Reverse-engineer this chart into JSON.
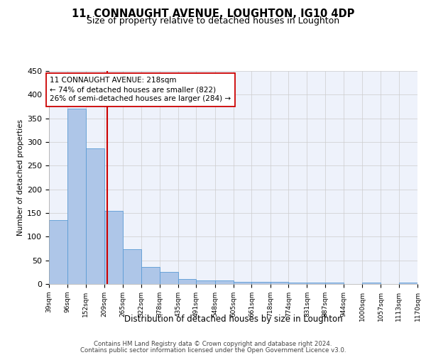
{
  "title1": "11, CONNAUGHT AVENUE, LOUGHTON, IG10 4DP",
  "title2": "Size of property relative to detached houses in Loughton",
  "xlabel": "Distribution of detached houses by size in Loughton",
  "ylabel": "Number of detached properties",
  "bin_edges": [
    39,
    96,
    152,
    209,
    265,
    322,
    378,
    435,
    491,
    548,
    605,
    661,
    718,
    774,
    831,
    887,
    944,
    1000,
    1057,
    1113,
    1170
  ],
  "bar_heights": [
    135,
    370,
    287,
    155,
    73,
    36,
    25,
    10,
    8,
    7,
    4,
    4,
    4,
    3,
    3,
    3,
    0,
    3,
    0,
    3
  ],
  "bar_color": "#aec6e8",
  "bar_edge_color": "#5b9bd5",
  "property_size": 218,
  "vline_color": "#cc0000",
  "annotation_line1": "11 CONNAUGHT AVENUE: 218sqm",
  "annotation_line2": "← 74% of detached houses are smaller (822)",
  "annotation_line3": "26% of semi-detached houses are larger (284) →",
  "annotation_box_color": "white",
  "annotation_box_edge": "#cc0000",
  "ylim": [
    0,
    450
  ],
  "yticks": [
    0,
    50,
    100,
    150,
    200,
    250,
    300,
    350,
    400,
    450
  ],
  "grid_color": "#cccccc",
  "background_color": "#eef2fb",
  "footer_line1": "Contains HM Land Registry data © Crown copyright and database right 2024.",
  "footer_line2": "Contains public sector information licensed under the Open Government Licence v3.0.",
  "tick_labels": [
    "39sqm",
    "96sqm",
    "152sqm",
    "209sqm",
    "265sqm",
    "322sqm",
    "378sqm",
    "435sqm",
    "491sqm",
    "548sqm",
    "605sqm",
    "661sqm",
    "718sqm",
    "774sqm",
    "831sqm",
    "887sqm",
    "944sqm",
    "1000sqm",
    "1057sqm",
    "1113sqm",
    "1170sqm"
  ],
  "title1_fontsize": 10.5,
  "title2_fontsize": 9,
  "xlabel_fontsize": 8.5,
  "ylabel_fontsize": 7.5,
  "tick_fontsize": 6.5,
  "ytick_fontsize": 8,
  "annotation_fontsize": 7.5,
  "footer_fontsize": 6.2
}
